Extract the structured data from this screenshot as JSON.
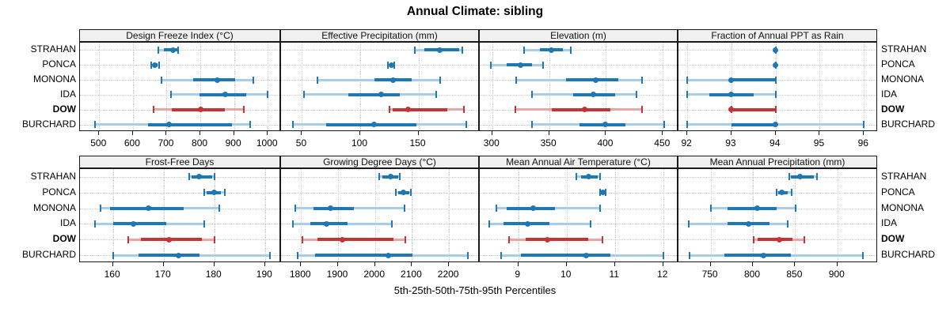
{
  "title": "Annual Climate: sibling",
  "caption": "5th-25th-50th-75th-95th Percentiles",
  "sites": [
    "STRAHAN",
    "PONCA",
    "MONONA",
    "IDA",
    "DOW",
    "BURCHARD"
  ],
  "highlight_site": "DOW",
  "colors": {
    "blue": "#1f77b4",
    "blue_light": "#a8cde4",
    "red": "#c53434",
    "red_light": "#e9a6a6",
    "strip_bg": "#f0f0f0",
    "grid": "#c9c9c9",
    "border": "#1a1a1a"
  },
  "chart_data": {
    "type": "dotplot-percentiles",
    "percentile_order": [
      "p5",
      "p25",
      "p50",
      "p75",
      "p95"
    ],
    "legend_note": "median dot, 25th-75th thick bar, 5th-95th light whisker with end caps; DOW highlighted red",
    "panels": [
      {
        "title": "Design Freeze Index (°C)",
        "row": 0,
        "col": 0,
        "axis": {
          "min": 443,
          "max": 1037,
          "ticks": [
            500,
            600,
            700,
            800,
            900,
            1000
          ]
        },
        "values": {
          "STRAHAN": [
            676,
            692,
            719,
            731,
            734
          ],
          "PONCA": [
            654,
            659,
            665,
            673,
            678
          ],
          "MONONA": [
            685,
            778,
            850,
            903,
            957
          ],
          "IDA": [
            713,
            798,
            873,
            937,
            1000
          ],
          "DOW": [
            661,
            715,
            801,
            873,
            928
          ],
          "BURCHARD": [
            487,
            644,
            707,
            893,
            947
          ]
        }
      },
      {
        "title": "Effective Precipitation (mm)",
        "row": 0,
        "col": 1,
        "axis": {
          "min": 32,
          "max": 202,
          "ticks": [
            50,
            100,
            150
          ]
        },
        "values": {
          "STRAHAN": [
            147,
            155,
            168,
            185,
            188
          ],
          "PONCA": [
            124,
            125.5,
            127,
            128.5,
            129
          ],
          "MONONA": [
            63,
            112,
            128,
            144,
            169
          ],
          "IDA": [
            52,
            90,
            118,
            134,
            165
          ],
          "DOW": [
            125,
            128,
            141,
            175,
            189
          ],
          "BURCHARD": [
            42,
            71,
            112,
            148,
            191
          ]
        }
      },
      {
        "title": "Elevation (m)",
        "row": 0,
        "col": 2,
        "axis": {
          "min": 289,
          "max": 463,
          "ticks": [
            300,
            350,
            400,
            450
          ]
        },
        "values": {
          "STRAHAN": [
            328,
            342,
            352,
            362,
            369
          ],
          "PONCA": [
            299,
            313,
            325,
            335,
            345
          ],
          "MONONA": [
            321,
            365,
            391,
            411,
            432
          ],
          "IDA": [
            335,
            371,
            389,
            408,
            427
          ],
          "DOW": [
            320,
            352,
            381,
            404,
            432
          ],
          "BURCHARD": [
            335,
            377,
            399,
            417,
            451
          ]
        }
      },
      {
        "title": "Fraction of Annual PPT as Rain",
        "row": 0,
        "col": 3,
        "axis": {
          "min": 91.8,
          "max": 96.3,
          "ticks": [
            92,
            93,
            94,
            95,
            96
          ]
        },
        "values": {
          "STRAHAN": [
            94,
            94,
            94,
            94,
            94
          ],
          "PONCA": [
            94,
            94,
            94,
            94,
            94
          ],
          "MONONA": [
            92,
            93,
            93,
            94,
            94
          ],
          "IDA": [
            92,
            92.5,
            93,
            93.5,
            94
          ],
          "DOW": [
            93,
            93,
            93,
            94,
            94
          ],
          "BURCHARD": [
            92,
            93,
            94,
            94,
            96
          ]
        }
      },
      {
        "title": "Frost-Free Days",
        "row": 1,
        "col": 0,
        "axis": {
          "min": 153.5,
          "max": 193,
          "ticks": [
            160,
            170,
            180,
            190
          ]
        },
        "values": {
          "STRAHAN": [
            175,
            175.5,
            177,
            179.5,
            180
          ],
          "PONCA": [
            178,
            178.5,
            180,
            181.3,
            182
          ],
          "MONONA": [
            157.5,
            159.5,
            167,
            174,
            181
          ],
          "IDA": [
            156.5,
            160,
            164,
            170.5,
            178
          ],
          "DOW": [
            163,
            165.5,
            171,
            177.5,
            180
          ],
          "BURCHARD": [
            160,
            165,
            173,
            177,
            191
          ]
        }
      },
      {
        "title": "Growing Degree Days (°C)",
        "row": 1,
        "col": 1,
        "axis": {
          "min": 1746,
          "max": 2281,
          "ticks": [
            1800,
            1900,
            2000,
            2100,
            2200
          ]
        },
        "values": {
          "STRAHAN": [
            2012,
            2020,
            2043,
            2062,
            2067
          ],
          "PONCA": [
            2057,
            2062,
            2076,
            2093,
            2098
          ],
          "MONONA": [
            1784,
            1834,
            1879,
            1943,
            2079
          ],
          "IDA": [
            1778,
            1826,
            1870,
            1925,
            2046
          ],
          "DOW": [
            1803,
            1844,
            1912,
            2050,
            2081
          ],
          "BURCHARD": [
            1792,
            1837,
            2037,
            2101,
            2250
          ]
        }
      },
      {
        "title": "Mean Annual Air Temperature (°C)",
        "row": 1,
        "col": 2,
        "axis": {
          "min": 8.2,
          "max": 12.3,
          "ticks": [
            9,
            10,
            11,
            12
          ]
        },
        "values": {
          "STRAHAN": [
            10.2,
            10.3,
            10.45,
            10.65,
            10.7
          ],
          "PONCA": [
            10.7,
            10.72,
            10.75,
            10.78,
            10.8
          ],
          "MONONA": [
            8.55,
            8.75,
            9.3,
            9.75,
            10.7
          ],
          "IDA": [
            8.4,
            8.7,
            9.2,
            9.65,
            10.5
          ],
          "DOW": [
            8.8,
            9.15,
            9.6,
            10.45,
            10.75
          ],
          "BURCHARD": [
            8.65,
            9.05,
            10.4,
            10.9,
            12.0
          ]
        }
      },
      {
        "title": "Mean Annual Precipitation (mm)",
        "row": 1,
        "col": 3,
        "axis": {
          "min": 712,
          "max": 947,
          "ticks": [
            750,
            800,
            850,
            900
          ]
        },
        "values": {
          "STRAHAN": [
            843,
            845,
            856,
            872,
            876
          ],
          "PONCA": [
            828,
            830,
            834,
            841,
            846
          ],
          "MONONA": [
            750,
            770,
            805,
            828,
            851
          ],
          "IDA": [
            724,
            770,
            795,
            820,
            841
          ],
          "DOW": [
            801,
            806,
            831,
            847,
            861
          ],
          "BURCHARD": [
            725,
            766,
            813,
            845,
            930
          ]
        }
      }
    ]
  }
}
